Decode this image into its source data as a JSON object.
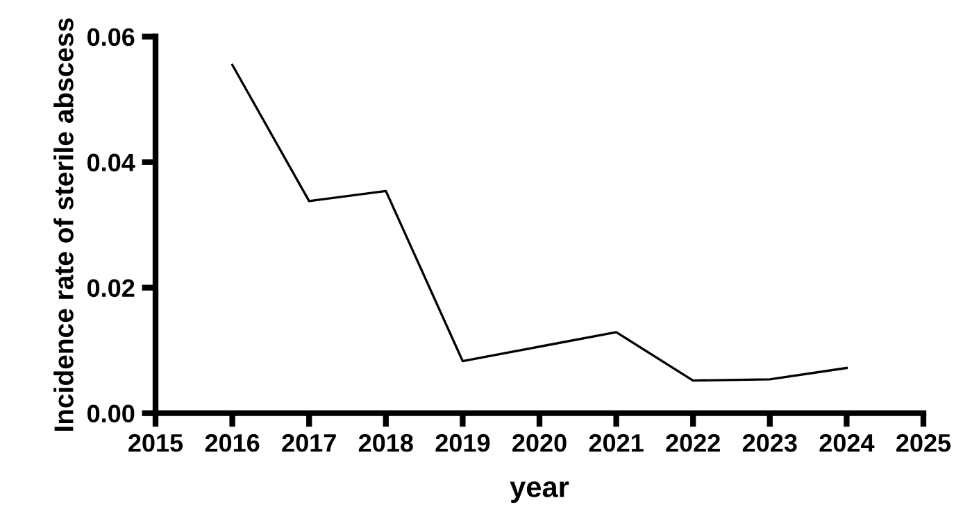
{
  "chart_data": {
    "type": "line",
    "xlabel": "year",
    "ylabel": "Incidence rate of sterile abscess",
    "x": [
      2016,
      2017,
      2018,
      2019,
      2020,
      2021,
      2022,
      2023,
      2024
    ],
    "series": [
      {
        "color": "#000000",
        "values": [
          0.0555,
          0.0338,
          0.0354,
          0.0083,
          0.0106,
          0.0129,
          0.0052,
          0.0054,
          0.0072
        ]
      }
    ],
    "xlim": [
      2015,
      2025
    ],
    "xticks": [
      2015,
      2016,
      2017,
      2018,
      2019,
      2020,
      2021,
      2022,
      2023,
      2024,
      2025
    ],
    "ylim": [
      0,
      0.06
    ],
    "yticks": [
      {
        "value": 0,
        "label": "0.00"
      },
      {
        "value": 0.02,
        "label": "0.02"
      },
      {
        "value": 0.04,
        "label": "0.04"
      },
      {
        "value": 0.06,
        "label": "0.06"
      }
    ],
    "grid": false,
    "legend": false,
    "marker": "none",
    "line_style": "solid"
  }
}
